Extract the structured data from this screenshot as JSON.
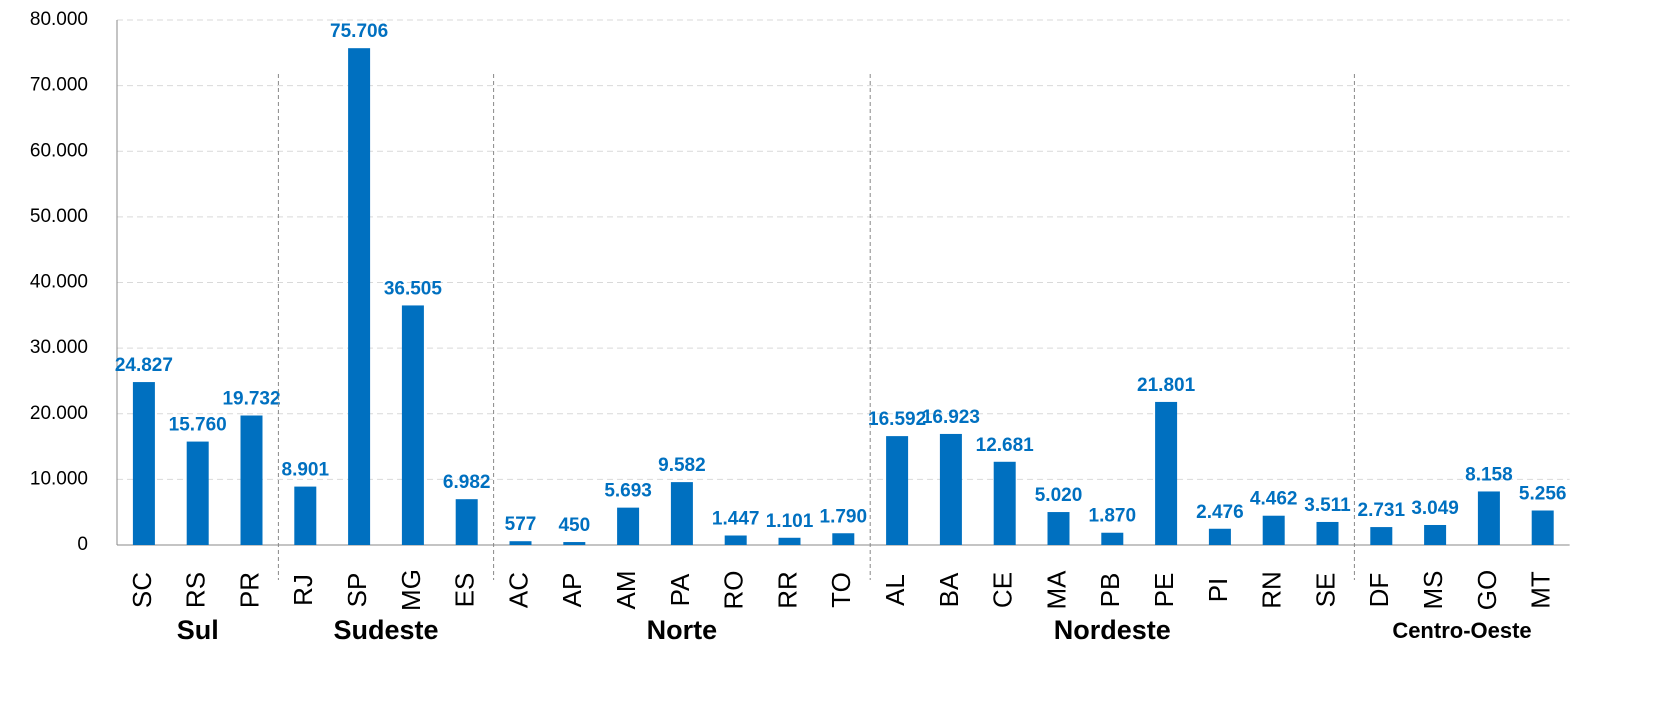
{
  "chart_data": {
    "type": "bar",
    "categories": [
      "SC",
      "RS",
      "PR",
      "RJ",
      "SP",
      "MG",
      "ES",
      "AC",
      "AP",
      "AM",
      "PA",
      "RO",
      "RR",
      "TO",
      "AL",
      "BA",
      "CE",
      "MA",
      "PB",
      "PE",
      "PI",
      "RN",
      "SE",
      "DF",
      "MS",
      "GO",
      "MT"
    ],
    "values": [
      24827,
      15760,
      19732,
      8901,
      75706,
      36505,
      6982,
      577,
      450,
      5693,
      9582,
      1447,
      1101,
      1790,
      16592,
      16923,
      12681,
      5020,
      1870,
      21801,
      2476,
      4462,
      3511,
      2731,
      3049,
      8158,
      5256
    ],
    "value_labels": [
      "24.827",
      "15.760",
      "19.732",
      "8.901",
      "75.706",
      "36.505",
      "6.982",
      "577",
      "450",
      "5.693",
      "9.582",
      "1.447",
      "1.101",
      "1.790",
      "16.592",
      "16.923",
      "12.681",
      "5.020",
      "1.870",
      "21.801",
      "2.476",
      "4.462",
      "3.511",
      "2.731",
      "3.049",
      "8.158",
      "5.256"
    ],
    "groups": [
      {
        "name": "Sul",
        "members": [
          "SC",
          "RS",
          "PR"
        ]
      },
      {
        "name": "Sudeste",
        "members": [
          "RJ",
          "SP",
          "MG",
          "ES"
        ]
      },
      {
        "name": "Norte",
        "members": [
          "AC",
          "AP",
          "AM",
          "PA",
          "RO",
          "RR",
          "TO"
        ]
      },
      {
        "name": "Nordeste",
        "members": [
          "AL",
          "BA",
          "CE",
          "MA",
          "PB",
          "PE",
          "PI",
          "RN",
          "SE"
        ]
      },
      {
        "name": "Centro-Oeste",
        "members": [
          "DF",
          "MS",
          "GO",
          "MT"
        ]
      }
    ],
    "color": "#0070c0",
    "ylim": [
      0,
      80000
    ],
    "yticks": [
      0,
      {
        "value": 10000,
        "label": "10.000"
      },
      {
        "value": 20000,
        "label": "20.000"
      },
      {
        "value": 30000,
        "label": "30.000"
      },
      {
        "value": 40000,
        "label": "40.000"
      },
      {
        "value": 50000,
        "label": "50.000"
      },
      {
        "value": 60000,
        "label": "60.000"
      },
      {
        "value": 70000,
        "label": "70.000"
      },
      {
        "value": 80000,
        "label": "80.000"
      }
    ],
    "grid": true
  }
}
